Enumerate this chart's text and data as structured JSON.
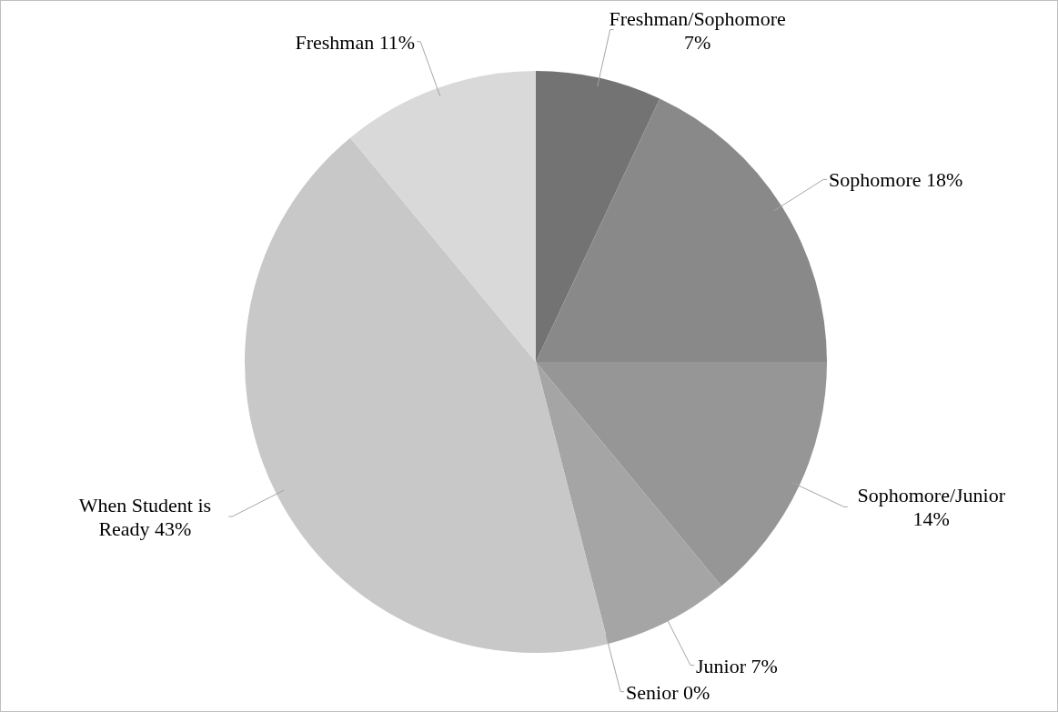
{
  "chart_data": {
    "type": "pie",
    "categories": [
      "Freshman/Sophomore",
      "Sophomore",
      "Sophomore/Junior",
      "Junior",
      "Senior",
      "When Student is Ready",
      "Freshman"
    ],
    "values": [
      7,
      18,
      14,
      7,
      0,
      43,
      11
    ],
    "colors": [
      "#737373",
      "#898989",
      "#969696",
      "#a5a5a5",
      "#b5b5b5",
      "#c8c8c8",
      "#d9d9d9"
    ],
    "data_labels": true,
    "value_labels": [
      "7%",
      "18%",
      "14%",
      "7%",
      "0%",
      "43%",
      "11%"
    ]
  }
}
